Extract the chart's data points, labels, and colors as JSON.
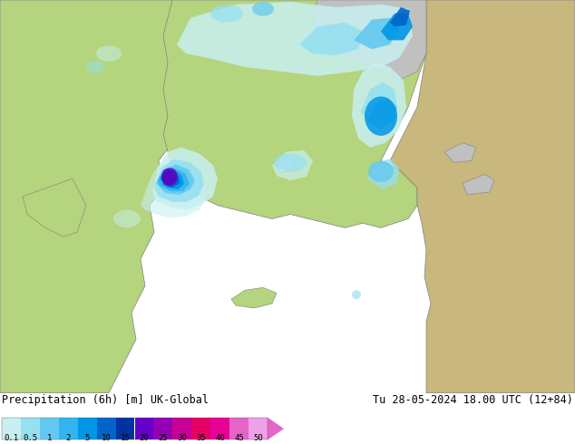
{
  "title_left": "Precipitation (6h) [m] UK-Global",
  "title_right": "Tu 28-05-2024 18.00 UTC (12+84)",
  "colorbar_levels": [
    "0.1",
    "0.5",
    "1",
    "2",
    "5",
    "10",
    "15",
    "20",
    "25",
    "30",
    "35",
    "40",
    "45",
    "50"
  ],
  "colorbar_colors": [
    "#c8f0f0",
    "#96e0f0",
    "#64c8f0",
    "#32b4f0",
    "#0096e6",
    "#0064c8",
    "#0032a0",
    "#6400c8",
    "#9600b4",
    "#c80096",
    "#e60064",
    "#e60096",
    "#e664c8",
    "#f0a0e6"
  ],
  "bg_color": "#ffffff",
  "land_green": "#b4d47d",
  "land_sea_left": "#dcdcdc",
  "land_desert": "#c8b87d",
  "land_gray": "#c0c0c0",
  "border_color": "#808080",
  "fig_width": 6.34,
  "fig_height": 4.9,
  "dpi": 100,
  "map_bg": "#dcdcdc",
  "prec_colors": {
    "vlight": "#c8f0f0",
    "light": "#96e0f0",
    "mid": "#64c8f0",
    "blue": "#32b4f0",
    "dblue": "#0096e6",
    "dark": "#0064c8",
    "vdark": "#0032a0",
    "purple": "#6400c8"
  }
}
